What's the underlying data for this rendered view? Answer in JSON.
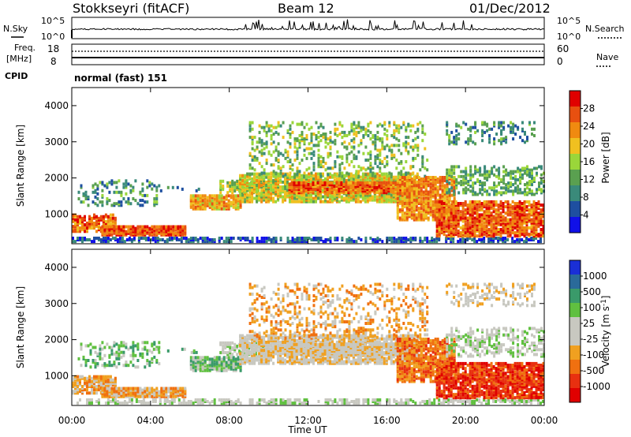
{
  "header": {
    "station": "Stokkseyri (fitACF)",
    "beam": "Beam 12",
    "date": "01/Dec/2012"
  },
  "panels": {
    "nsky_label": "N.Sky",
    "nsky_ticks": [
      "10^5",
      "10^0"
    ],
    "nsearch_label": "N.Search",
    "nsearch_ticks": [
      "10^5",
      "10^0"
    ],
    "freq_label_1": "Freq.",
    "freq_label_2": "[MHz]",
    "freq_ticks": [
      "18",
      "8"
    ],
    "nave_label": "Nave",
    "nave_ticks": [
      "60",
      "0"
    ],
    "cpid_label": "CPID",
    "cpid_value": "normal (fast) 151"
  },
  "colors": {
    "power": [
      "#1010e8",
      "#1e4fa0",
      "#3a8a7a",
      "#5aa050",
      "#9ad63a",
      "#f0c020",
      "#f08a10",
      "#e85010",
      "#e00000"
    ],
    "velocity": [
      "#1a2fd6",
      "#2a6a9a",
      "#3a9a6a",
      "#60c040",
      "#c8c8c0",
      "#c8c8c0",
      "#f0a020",
      "#f07010",
      "#e83010",
      "#e00000"
    ]
  },
  "chart_data": [
    {
      "type": "heatmap",
      "quantity": "power",
      "xlabel": "",
      "ylabel": "Slant Range [km]",
      "x_ticks": [
        "00:00",
        "04:00",
        "08:00",
        "12:00",
        "16:00",
        "20:00",
        "00:00"
      ],
      "y_ticks": [
        "1000",
        "2000",
        "3000",
        "4000"
      ],
      "ylim": [
        180,
        4500
      ],
      "xlim_hours": [
        0,
        24
      ],
      "colorbar_label": "Power [dB]",
      "colorbar_ticks": [
        "4",
        "8",
        "12",
        "16",
        "20",
        "24",
        "28"
      ],
      "colorbar_range": [
        0,
        32
      ]
    },
    {
      "type": "heatmap",
      "quantity": "velocity",
      "xlabel": "Time UT",
      "ylabel": "Slant Range [km]",
      "x_ticks": [
        "00:00",
        "04:00",
        "08:00",
        "12:00",
        "16:00",
        "20:00",
        "00:00"
      ],
      "y_ticks": [
        "1000",
        "2000",
        "3000",
        "4000"
      ],
      "ylim": [
        180,
        4500
      ],
      "xlim_hours": [
        0,
        24
      ],
      "colorbar_label": "Velocity [m s^-1]",
      "colorbar_ticks": [
        "1000",
        "500",
        "100",
        "25",
        "-25",
        "-100",
        "-500",
        "-1000"
      ]
    }
  ]
}
